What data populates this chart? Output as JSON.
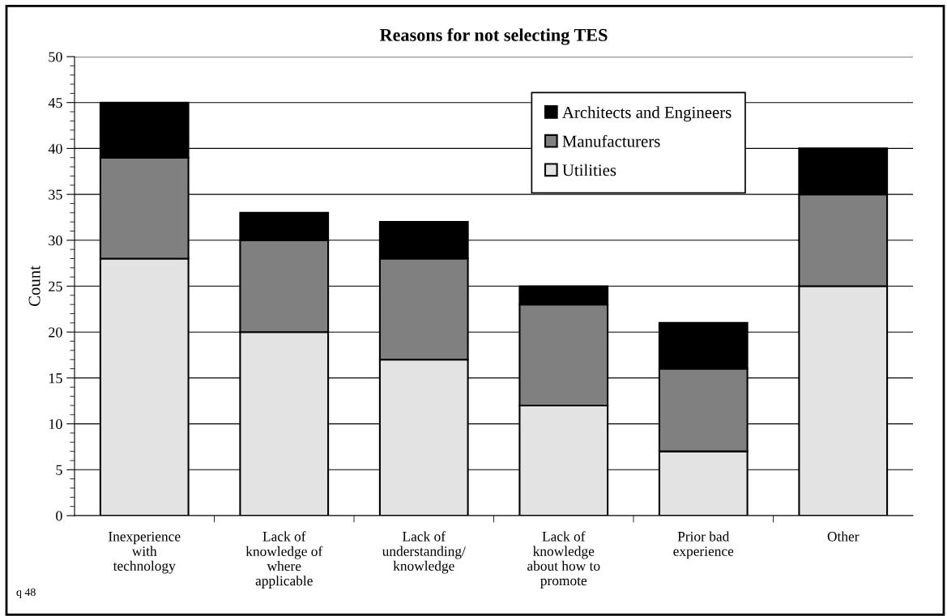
{
  "chart_data": {
    "type": "bar",
    "title": "Reasons for not selecting TES",
    "ylabel": "Count",
    "categories": [
      "Inexperience\nwith\ntechnology",
      "Lack of\nknowledge of\nwhere\napplicable",
      "Lack of\nunderstanding/\nknowledge",
      "Lack of\nknowledge\nabout how to\npromote",
      "Prior bad\nexperience",
      "Other"
    ],
    "series": [
      {
        "name": "Utilities",
        "color": "#e3e3e3",
        "values": [
          28,
          20,
          17,
          12,
          7,
          25
        ]
      },
      {
        "name": "Manufacturers",
        "color": "#808080",
        "values": [
          11,
          10,
          11,
          11,
          9,
          10
        ]
      },
      {
        "name": "Architects and Engineers",
        "color": "#000000",
        "values": [
          6,
          3,
          4,
          2,
          5,
          5
        ]
      }
    ],
    "stacked": true,
    "ylim": [
      0,
      50
    ],
    "yticks": [
      0,
      5,
      10,
      15,
      20,
      25,
      30,
      35,
      40,
      45,
      50
    ],
    "grid": "y",
    "legend": "top right",
    "annotations": [
      "q 48"
    ]
  }
}
